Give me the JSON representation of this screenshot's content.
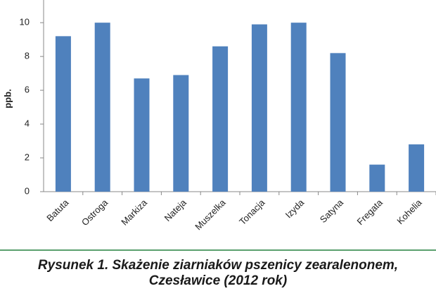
{
  "chart_data": {
    "type": "bar",
    "y_label": "ppb.",
    "categories": [
      "Batuta",
      "Ostroga",
      "Markiza",
      "Nateja",
      "Muszelka",
      "Tonacja",
      "Izyda",
      "Satyna",
      "Fregata",
      "Kohelia"
    ],
    "values": [
      9.2,
      10.0,
      6.7,
      6.9,
      8.6,
      9.9,
      10.0,
      8.2,
      1.6,
      2.8
    ],
    "color": "#4f81bd",
    "ylim": [
      0,
      11.3
    ],
    "yticks": [
      0,
      2,
      4,
      6,
      8,
      10
    ],
    "grid": false,
    "caption": [
      "Rysunek 1. Skażenie ziarniaków pszenicy zearalenonem,",
      "Czesławice (2012 rok)"
    ]
  }
}
